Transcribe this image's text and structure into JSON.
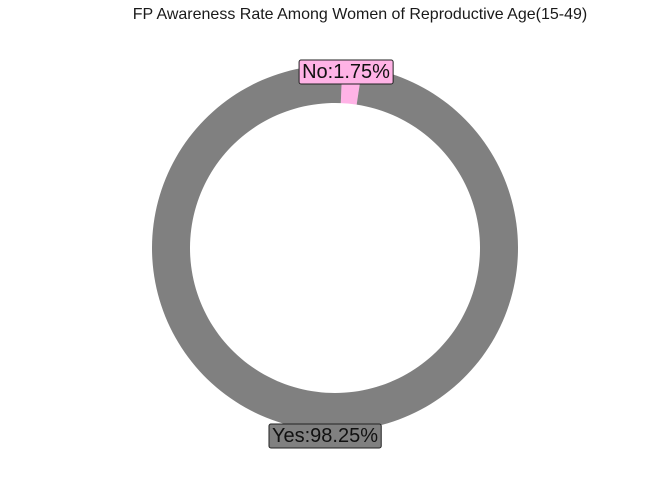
{
  "chart_data": {
    "type": "pie",
    "style": "donut",
    "title": "FP Awareness Rate Among Women of Reproductive Age(15-49)",
    "categories": [
      "No",
      "Yes"
    ],
    "values": [
      1.75,
      98.25
    ],
    "labels": [
      "No:1.75%",
      "Yes:98.25%"
    ],
    "colors": [
      "#FFB3E6",
      "#808080"
    ],
    "legend": "none"
  }
}
